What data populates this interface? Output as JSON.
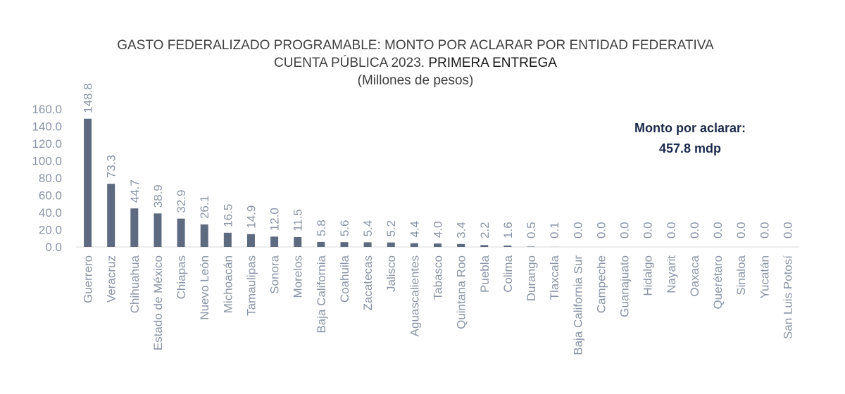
{
  "chart_data": {
    "type": "bar",
    "title": "GASTO FEDERALIZADO PROGRAMABLE: MONTO POR ACLARAR POR ENTIDAD FEDERATIVA",
    "subtitle_line1": "CUENTA PÚBLICA 2023.",
    "subtitle_line1_emphasis": "PRIMERA ENTREGA",
    "subtitle_line2": "(Millones de pesos)",
    "xlabel": "",
    "ylabel": "",
    "ylim": [
      0,
      160
    ],
    "yticks": [
      0,
      20,
      40,
      60,
      80,
      100,
      120,
      140,
      160
    ],
    "grid": false,
    "bar_color": "#5d6a7f",
    "categories": [
      "Guerrero",
      "Veracruz",
      "Chihuahua",
      "Estado de México",
      "Chiapas",
      "Nuevo León",
      "Michoacán",
      "Tamaulipas",
      "Sonora",
      "Morelos",
      "Baja California",
      "Coahuila",
      "Zacatecas",
      "Jalisco",
      "Aguascalientes",
      "Tabasco",
      "Quintana Roo",
      "Puebla",
      "Colima",
      "Durango",
      "Tlaxcala",
      "Baja California Sur",
      "Campeche",
      "Guanajuato",
      "Hidalgo",
      "Nayarit",
      "Oaxaca",
      "Querétaro",
      "Sinaloa",
      "Yucatán",
      "San Luis Potosí"
    ],
    "values": [
      148.8,
      73.3,
      44.7,
      38.9,
      32.9,
      26.1,
      16.5,
      14.9,
      12.0,
      11.5,
      5.8,
      5.6,
      5.4,
      5.2,
      4.4,
      4.0,
      3.4,
      2.2,
      1.6,
      0.5,
      0.1,
      0.0,
      0.0,
      0.0,
      0.0,
      0.0,
      0.0,
      0.0,
      0.0,
      0.0,
      0.0
    ],
    "annotation_line1": "Monto por aclarar:",
    "annotation_line2": "457.8 mdp"
  }
}
